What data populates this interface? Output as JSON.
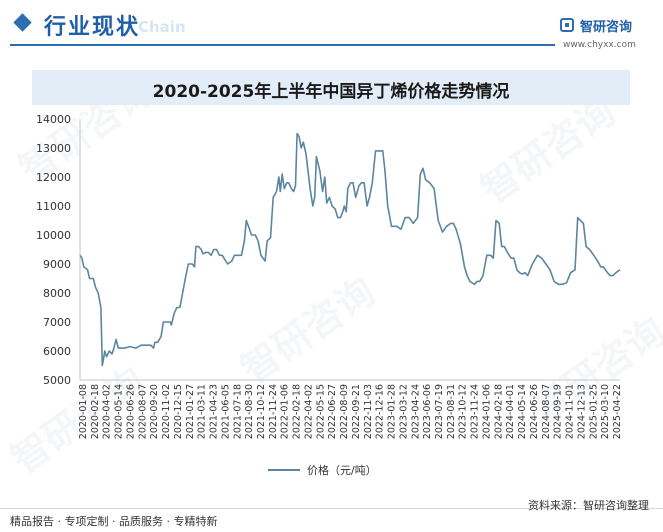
{
  "header": {
    "section_title": "行业现状",
    "section_subtitle": "Chain",
    "brand_name": "智研咨询",
    "brand_url": "www.chyxx.com"
  },
  "watermark": "智研咨询",
  "footer": {
    "tags": "精品报告 · 专项定制 · 品质服务 · 专精特新",
    "source": "资料来源：智研咨询整理"
  },
  "colors": {
    "accent": "#2a6fb1",
    "line": "#5b86a0",
    "title_band": "#e3edf7"
  },
  "chart_data": {
    "type": "line",
    "title": "2020-2025年上半年中国异丁烯价格走势情况",
    "xlabel": "",
    "ylabel": "",
    "ylim": [
      5000,
      14000
    ],
    "yticks": [
      5000,
      6000,
      7000,
      8000,
      9000,
      10000,
      11000,
      12000,
      13000,
      14000
    ],
    "x_start": "2020-01-08",
    "x_end": "2025-06-20",
    "tick_labels": [
      "2020-01-08",
      "2020-02-18",
      "2020-04-02",
      "2020-05-14",
      "2020-06-26",
      "2020-08-07",
      "2020-09-20",
      "2020-11-02",
      "2020-12-15",
      "2021-01-27",
      "2021-03-11",
      "2021-04-23",
      "2021-06-05",
      "2021-07-18",
      "2021-08-30",
      "2021-10-12",
      "2021-11-24",
      "2022-01-06",
      "2022-02-18",
      "2022-04-02",
      "2022-05-15",
      "2022-06-27",
      "2022-08-09",
      "2022-09-21",
      "2022-11-03",
      "2022-12-16",
      "2023-01-28",
      "2023-03-12",
      "2023-04-24",
      "2023-06-06",
      "2023-07-19",
      "2023-08-31",
      "2023-10-12",
      "2023-11-24",
      "2024-01-06",
      "2024-02-18",
      "2024-04-01",
      "2024-05-14",
      "2024-06-26",
      "2024-08-07",
      "2024-09-19",
      "2024-11-01",
      "2024-12-13",
      "2025-01-25",
      "2025-03-10",
      "2025-04-22"
    ],
    "legend": "价格（元/吨）",
    "series": [
      {
        "name": "价格（元/吨）",
        "points": [
          [
            "2020-01-08",
            9300
          ],
          [
            "2020-01-15",
            9200
          ],
          [
            "2020-01-22",
            8900
          ],
          [
            "2020-02-05",
            8800
          ],
          [
            "2020-02-12",
            8500
          ],
          [
            "2020-02-26",
            8500
          ],
          [
            "2020-03-05",
            8200
          ],
          [
            "2020-03-15",
            8000
          ],
          [
            "2020-03-25",
            7500
          ],
          [
            "2020-03-30",
            5500
          ],
          [
            "2020-04-05",
            5800
          ],
          [
            "2020-04-08",
            6000
          ],
          [
            "2020-04-15",
            5800
          ],
          [
            "2020-04-25",
            6000
          ],
          [
            "2020-05-05",
            5900
          ],
          [
            "2020-05-12",
            6100
          ],
          [
            "2020-05-20",
            6400
          ],
          [
            "2020-05-28",
            6100
          ],
          [
            "2020-06-20",
            6100
          ],
          [
            "2020-07-10",
            6150
          ],
          [
            "2020-08-01",
            6100
          ],
          [
            "2020-08-20",
            6200
          ],
          [
            "2020-09-10",
            6200
          ],
          [
            "2020-09-25",
            6200
          ],
          [
            "2020-10-05",
            6100
          ],
          [
            "2020-10-10",
            6300
          ],
          [
            "2020-10-20",
            6300
          ],
          [
            "2020-11-02",
            6500
          ],
          [
            "2020-11-10",
            7000
          ],
          [
            "2020-11-25",
            7000
          ],
          [
            "2020-12-05",
            7000
          ],
          [
            "2020-12-10",
            6900
          ],
          [
            "2020-12-20",
            7300
          ],
          [
            "2020-12-30",
            7500
          ],
          [
            "2021-01-10",
            7500
          ],
          [
            "2021-01-20",
            8000
          ],
          [
            "2021-01-30",
            8500
          ],
          [
            "2021-02-10",
            9000
          ],
          [
            "2021-02-25",
            9000
          ],
          [
            "2021-03-05",
            8900
          ],
          [
            "2021-03-10",
            9600
          ],
          [
            "2021-03-20",
            9600
          ],
          [
            "2021-03-30",
            9500
          ],
          [
            "2021-04-05",
            9350
          ],
          [
            "2021-04-15",
            9400
          ],
          [
            "2021-04-25",
            9400
          ],
          [
            "2021-05-05",
            9300
          ],
          [
            "2021-05-15",
            9500
          ],
          [
            "2021-05-25",
            9500
          ],
          [
            "2021-06-05",
            9300
          ],
          [
            "2021-06-15",
            9300
          ],
          [
            "2021-06-25",
            9150
          ],
          [
            "2021-07-05",
            9000
          ],
          [
            "2021-07-20",
            9100
          ],
          [
            "2021-07-30",
            9300
          ],
          [
            "2021-08-15",
            9300
          ],
          [
            "2021-08-25",
            9300
          ],
          [
            "2021-09-05",
            9800
          ],
          [
            "2021-09-12",
            10500
          ],
          [
            "2021-09-20",
            10300
          ],
          [
            "2021-10-01",
            10000
          ],
          [
            "2021-10-15",
            10000
          ],
          [
            "2021-10-25",
            9800
          ],
          [
            "2021-11-05",
            9300
          ],
          [
            "2021-11-20",
            9100
          ],
          [
            "2021-11-28",
            9800
          ],
          [
            "2021-12-10",
            9900
          ],
          [
            "2021-12-20",
            11300
          ],
          [
            "2022-01-01",
            11500
          ],
          [
            "2022-01-10",
            12000
          ],
          [
            "2022-01-15",
            11500
          ],
          [
            "2022-01-22",
            12100
          ],
          [
            "2022-01-30",
            11600
          ],
          [
            "2022-02-08",
            11800
          ],
          [
            "2022-02-15",
            11800
          ],
          [
            "2022-02-25",
            11600
          ],
          [
            "2022-03-05",
            11500
          ],
          [
            "2022-03-12",
            11700
          ],
          [
            "2022-03-18",
            13500
          ],
          [
            "2022-03-25",
            13400
          ],
          [
            "2022-04-02",
            13000
          ],
          [
            "2022-04-10",
            13200
          ],
          [
            "2022-04-20",
            12800
          ],
          [
            "2022-05-05",
            11600
          ],
          [
            "2022-05-15",
            11000
          ],
          [
            "2022-05-22",
            11300
          ],
          [
            "2022-05-28",
            12700
          ],
          [
            "2022-06-10",
            12200
          ],
          [
            "2022-06-20",
            11500
          ],
          [
            "2022-06-28",
            12000
          ],
          [
            "2022-07-05",
            11100
          ],
          [
            "2022-07-15",
            11300
          ],
          [
            "2022-07-25",
            11000
          ],
          [
            "2022-08-05",
            10900
          ],
          [
            "2022-08-15",
            10600
          ],
          [
            "2022-08-25",
            10600
          ],
          [
            "2022-09-02",
            10800
          ],
          [
            "2022-09-08",
            11000
          ],
          [
            "2022-09-15",
            10800
          ],
          [
            "2022-09-21",
            11600
          ],
          [
            "2022-10-01",
            11800
          ],
          [
            "2022-10-10",
            11800
          ],
          [
            "2022-10-20",
            11300
          ],
          [
            "2022-11-01",
            11700
          ],
          [
            "2022-11-10",
            11800
          ],
          [
            "2022-11-20",
            11800
          ],
          [
            "2022-12-01",
            11000
          ],
          [
            "2022-12-10",
            11300
          ],
          [
            "2022-12-20",
            11800
          ],
          [
            "2023-01-01",
            12900
          ],
          [
            "2023-01-15",
            12900
          ],
          [
            "2023-01-28",
            12900
          ],
          [
            "2023-02-05",
            12200
          ],
          [
            "2023-02-15",
            11000
          ],
          [
            "2023-03-01",
            10300
          ],
          [
            "2023-03-20",
            10300
          ],
          [
            "2023-04-05",
            10200
          ],
          [
            "2023-04-20",
            10600
          ],
          [
            "2023-05-05",
            10600
          ],
          [
            "2023-05-20",
            10400
          ],
          [
            "2023-06-05",
            10600
          ],
          [
            "2023-06-15",
            12100
          ],
          [
            "2023-06-25",
            12300
          ],
          [
            "2023-07-05",
            11900
          ],
          [
            "2023-07-20",
            11800
          ],
          [
            "2023-08-05",
            11600
          ],
          [
            "2023-08-20",
            10500
          ],
          [
            "2023-09-05",
            10100
          ],
          [
            "2023-09-20",
            10300
          ],
          [
            "2023-10-05",
            10400
          ],
          [
            "2023-10-15",
            10400
          ],
          [
            "2023-10-25",
            10200
          ],
          [
            "2023-11-10",
            9700
          ],
          [
            "2023-11-25",
            8900
          ],
          [
            "2023-12-05",
            8600
          ],
          [
            "2023-12-15",
            8400
          ],
          [
            "2024-01-01",
            8300
          ],
          [
            "2024-01-10",
            8400
          ],
          [
            "2024-01-20",
            8400
          ],
          [
            "2024-02-01",
            8600
          ],
          [
            "2024-02-15",
            9300
          ],
          [
            "2024-03-01",
            9300
          ],
          [
            "2024-03-10",
            9200
          ],
          [
            "2024-03-20",
            10500
          ],
          [
            "2024-04-01",
            10400
          ],
          [
            "2024-04-10",
            9600
          ],
          [
            "2024-04-20",
            9600
          ],
          [
            "2024-05-01",
            9400
          ],
          [
            "2024-05-15",
            9200
          ],
          [
            "2024-05-25",
            9200
          ],
          [
            "2024-06-05",
            8800
          ],
          [
            "2024-06-15",
            8700
          ],
          [
            "2024-06-25",
            8650
          ],
          [
            "2024-07-05",
            8700
          ],
          [
            "2024-07-15",
            8600
          ],
          [
            "2024-08-01",
            9000
          ],
          [
            "2024-08-20",
            9300
          ],
          [
            "2024-09-05",
            9200
          ],
          [
            "2024-09-20",
            9000
          ],
          [
            "2024-10-05",
            8800
          ],
          [
            "2024-10-20",
            8400
          ],
          [
            "2024-11-05",
            8300
          ],
          [
            "2024-11-20",
            8300
          ],
          [
            "2024-12-05",
            8350
          ],
          [
            "2024-12-20",
            8700
          ],
          [
            "2025-01-05",
            8800
          ],
          [
            "2025-01-15",
            10600
          ],
          [
            "2025-01-25",
            10500
          ],
          [
            "2025-02-05",
            10400
          ],
          [
            "2025-02-15",
            9600
          ],
          [
            "2025-02-28",
            9500
          ],
          [
            "2025-03-15",
            9300
          ],
          [
            "2025-03-30",
            9100
          ],
          [
            "2025-04-10",
            8900
          ],
          [
            "2025-04-20",
            8900
          ],
          [
            "2025-05-05",
            8700
          ],
          [
            "2025-05-15",
            8600
          ],
          [
            "2025-05-25",
            8600
          ],
          [
            "2025-06-05",
            8700
          ],
          [
            "2025-06-20",
            8800
          ]
        ]
      }
    ]
  }
}
